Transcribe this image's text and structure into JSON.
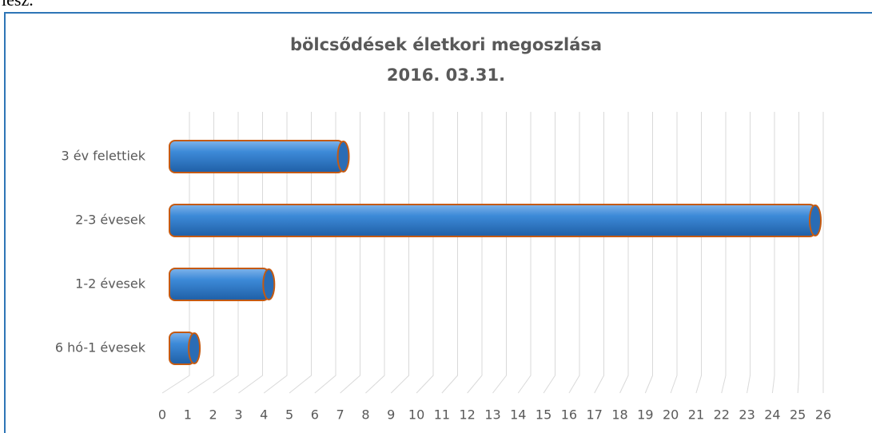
{
  "top_text": "lesz.",
  "chart_data": {
    "type": "bar3d",
    "orientation": "horizontal",
    "title": [
      "bölcsődések életkori megoszlása",
      "2016. 03.31."
    ],
    "categories": [
      "3 év felettiek",
      "2-3 évesek",
      "1-2 évesek",
      "6 hó-1 évesek"
    ],
    "values": [
      7,
      26,
      4,
      1
    ],
    "color": "#2e78c8",
    "edge_color": "#c55a11",
    "xlim": [
      0,
      26
    ],
    "xticks": [
      0,
      1,
      2,
      3,
      4,
      5,
      6,
      7,
      8,
      9,
      10,
      11,
      12,
      13,
      14,
      15,
      16,
      17,
      18,
      19,
      20,
      21,
      22,
      23,
      24,
      25,
      26
    ],
    "grid": true
  }
}
